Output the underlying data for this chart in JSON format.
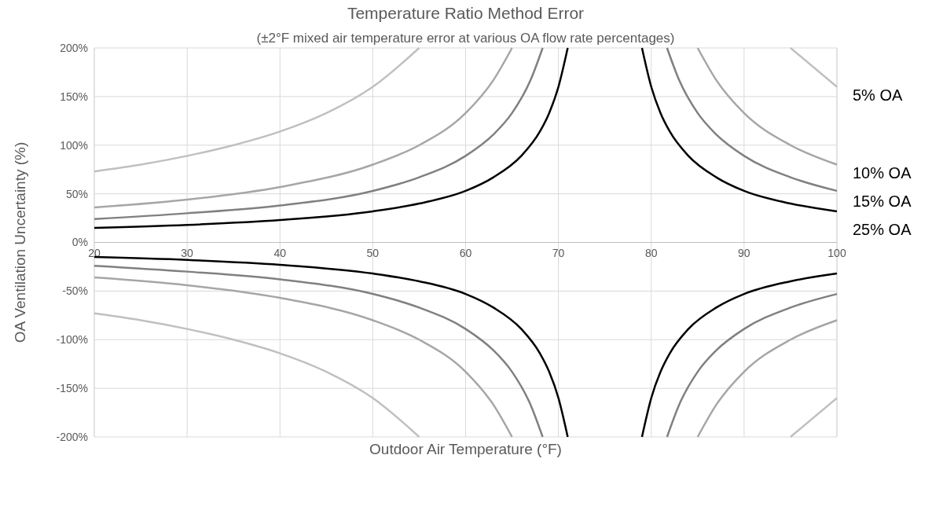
{
  "chart_data": {
    "type": "line",
    "title": "Temperature Ratio Method Error",
    "subtitle": "(±2°F mixed air temperature error at various OA flow rate percentages)",
    "xlabel": "Outdoor Air Temperature (°F)",
    "ylabel": "OA Ventilation Uncertainty  (%)",
    "xlim": [
      20,
      100
    ],
    "xticks": [
      20,
      30,
      40,
      50,
      60,
      70,
      80,
      90,
      100
    ],
    "ylim": [
      -200,
      200
    ],
    "yticks": [
      {
        "value": -200,
        "label": "-200%"
      },
      {
        "value": -150,
        "label": "-150%"
      },
      {
        "value": -100,
        "label": "-100%"
      },
      {
        "value": -50,
        "label": "-50%"
      },
      {
        "value": 0,
        "label": "0%"
      },
      {
        "value": 50,
        "label": "50%"
      },
      {
        "value": 100,
        "label": "100%"
      },
      {
        "value": 150,
        "label": "150%"
      },
      {
        "value": 200,
        "label": "200%"
      }
    ],
    "grid": true,
    "line_style": "solid",
    "marker": "none",
    "series": [
      {
        "name": "5% OA",
        "color": "#c0c0c0",
        "x": [
          20,
          25,
          30,
          35,
          40,
          45,
          50,
          55,
          75,
          95,
          100
        ],
        "values": [
          73,
          80,
          89,
          100,
          114,
          133,
          160,
          200,
          null,
          200,
          160
        ]
      },
      {
        "name": "10% OA",
        "color": "#a6a6a6",
        "x": [
          20,
          30,
          40,
          50,
          55,
          60,
          63,
          65,
          75,
          85,
          87,
          90,
          95,
          100
        ],
        "values": [
          36,
          44,
          57,
          80,
          100,
          133,
          167,
          200,
          null,
          200,
          167,
          133,
          100,
          80
        ]
      },
      {
        "name": "15% OA",
        "color": "#808080",
        "x": [
          20,
          30,
          40,
          50,
          55,
          60,
          63,
          65,
          67,
          68.3,
          75,
          81.7,
          83,
          85,
          87,
          90,
          95,
          100
        ],
        "values": [
          24,
          30,
          38,
          53,
          67,
          89,
          111,
          133,
          167,
          200,
          null,
          200,
          167,
          133,
          111,
          89,
          67,
          53
        ]
      },
      {
        "name": "25% OA",
        "color": "#000000",
        "x": [
          20,
          30,
          40,
          50,
          55,
          60,
          63,
          66,
          68,
          69,
          70,
          71,
          75,
          79,
          80,
          81,
          82,
          84,
          87,
          90,
          95,
          100
        ],
        "values": [
          15,
          18,
          23,
          32,
          40,
          53,
          67,
          89,
          114,
          133,
          160,
          200,
          null,
          200,
          160,
          133,
          114,
          89,
          67,
          53,
          40,
          32
        ]
      },
      {
        "color": "#c0c0c0",
        "x": [
          20,
          25,
          30,
          35,
          40,
          45,
          50,
          55,
          75,
          95,
          100
        ],
        "values": [
          -73,
          -80,
          -89,
          -100,
          -114,
          -133,
          -160,
          -200,
          null,
          -200,
          -160
        ]
      },
      {
        "color": "#a6a6a6",
        "x": [
          20,
          30,
          40,
          50,
          55,
          60,
          63,
          65,
          75,
          85,
          87,
          90,
          95,
          100
        ],
        "values": [
          -36,
          -44,
          -57,
          -80,
          -100,
          -133,
          -167,
          -200,
          null,
          -200,
          -167,
          -133,
          -100,
          -80
        ]
      },
      {
        "color": "#808080",
        "x": [
          20,
          30,
          40,
          50,
          55,
          60,
          63,
          65,
          67,
          68.3,
          75,
          81.7,
          83,
          85,
          87,
          90,
          95,
          100
        ],
        "values": [
          -24,
          -30,
          -38,
          -53,
          -67,
          -89,
          -111,
          -133,
          -167,
          -200,
          null,
          -200,
          -167,
          -133,
          -111,
          -89,
          -67,
          -53
        ]
      },
      {
        "color": "#000000",
        "x": [
          20,
          30,
          40,
          50,
          55,
          60,
          63,
          66,
          68,
          69,
          70,
          71,
          75,
          79,
          80,
          81,
          82,
          84,
          87,
          90,
          95,
          100
        ],
        "values": [
          -15,
          -18,
          -23,
          -32,
          -40,
          -53,
          -67,
          -89,
          -114,
          -133,
          -160,
          -200,
          null,
          -200,
          -160,
          -133,
          -114,
          -89,
          -67,
          -53,
          -40,
          -32
        ]
      }
    ]
  }
}
